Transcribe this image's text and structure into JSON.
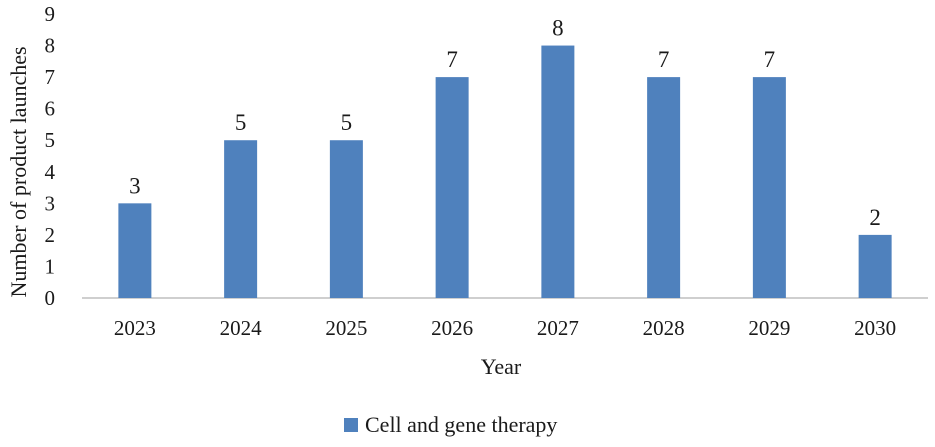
{
  "chart_data": {
    "type": "bar",
    "title": "",
    "xlabel": "Year",
    "ylabel": "Number of product launches",
    "ylim": [
      0,
      9
    ],
    "yticks": [
      0,
      1,
      2,
      3,
      4,
      5,
      6,
      7,
      8,
      9
    ],
    "categories": [
      "2023",
      "2024",
      "2025",
      "2026",
      "2027",
      "2028",
      "2029",
      "2030"
    ],
    "series": [
      {
        "name": "Cell and gene therapy",
        "values": [
          3,
          5,
          5,
          7,
          8,
          7,
          7,
          2
        ],
        "color": "#4f81bd"
      }
    ],
    "data_labels": true,
    "grid": false,
    "legend_position": "bottom"
  }
}
